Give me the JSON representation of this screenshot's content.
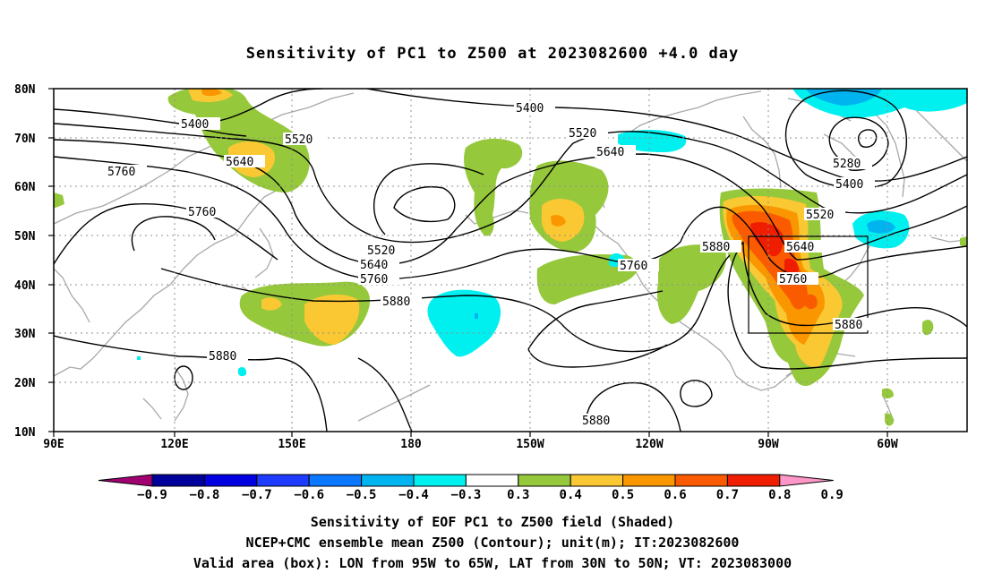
{
  "title": "Sensitivity of PC1 to Z500 at 2023082600 +4.0 day",
  "lat_labels": [
    "80N",
    "70N",
    "60N",
    "50N",
    "40N",
    "30N",
    "20N",
    "10N"
  ],
  "lon_labels": [
    "90E",
    "120E",
    "150E",
    "180",
    "150W",
    "120W",
    "90W",
    "60W"
  ],
  "contour_labels": [
    {
      "id": "5400a",
      "text": "5400"
    },
    {
      "id": "5520a",
      "text": "5520"
    },
    {
      "id": "5640a",
      "text": "5640"
    },
    {
      "id": "5760a",
      "text": "5760"
    },
    {
      "id": "5760b",
      "text": "5760"
    },
    {
      "id": "5880a",
      "text": "5880"
    },
    {
      "id": "5400b",
      "text": "5400"
    },
    {
      "id": "5520b",
      "text": "5520"
    },
    {
      "id": "5640b",
      "text": "5640"
    },
    {
      "id": "5520c",
      "text": "5520"
    },
    {
      "id": "5640c",
      "text": "5640"
    },
    {
      "id": "5760c",
      "text": "5760"
    },
    {
      "id": "5880b",
      "text": "5880"
    },
    {
      "id": "5760d",
      "text": "5760"
    },
    {
      "id": "5880c",
      "text": "5880"
    },
    {
      "id": "5280a",
      "text": "5280"
    },
    {
      "id": "5400c",
      "text": "5400"
    },
    {
      "id": "5520d",
      "text": "5520"
    },
    {
      "id": "5640d",
      "text": "5640"
    },
    {
      "id": "5760e",
      "text": "5760"
    },
    {
      "id": "5880d",
      "text": "5880"
    },
    {
      "id": "5880e",
      "text": "5880"
    }
  ],
  "colorbar": {
    "labels": [
      "−0.9",
      "−0.8",
      "−0.7",
      "−0.6",
      "−0.5",
      "−0.4",
      "−0.3",
      "0.3",
      "0.4",
      "0.5",
      "0.6",
      "0.7",
      "0.8",
      "0.9"
    ],
    "colors": [
      "#a00070",
      "#00009b",
      "#0000e0",
      "#1e3cff",
      "#0a78ff",
      "#00b4f0",
      "#00f0f0",
      "#ffffff",
      "#96c83c",
      "#fac832",
      "#fa9600",
      "#fa5a00",
      "#f01e00",
      "#ff96c8"
    ]
  },
  "captions": {
    "line1": "Sensitivity of EOF PC1 to Z500 field (Shaded)",
    "line2": "NCEP+CMC ensemble mean Z500 (Contour); unit(m); IT:2023082600",
    "line3": "Valid area (box): LON from 95W to 65W, LAT from 30N to 50N; VT: 2023083000"
  },
  "valid_box": {
    "lon_from": "95W",
    "lon_to": "65W",
    "lat_from": "30N",
    "lat_to": "50N"
  }
}
